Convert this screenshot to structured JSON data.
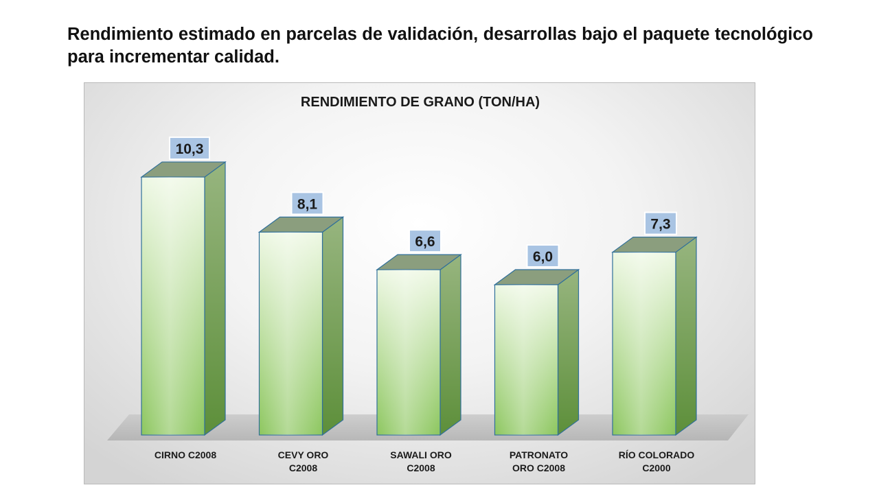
{
  "slide": {
    "title": "Rendimiento estimado en parcelas de validación, desarrollas bajo el paquete tecnológico para incrementar calidad."
  },
  "chart_data": {
    "type": "bar",
    "title": "RENDIMIENTO DE GRANO (TON/HA)",
    "categories": [
      [
        "CIRNO C2008"
      ],
      [
        "CEVY ORO",
        "C2008"
      ],
      [
        "SAWALI ORO",
        "C2008"
      ],
      [
        "PATRONATO",
        "ORO C2008"
      ],
      [
        "RÍO COLORADO",
        "C2000"
      ]
    ],
    "values": [
      10.3,
      8.1,
      6.6,
      6.0,
      7.3
    ],
    "value_labels": [
      "10,3",
      "8,1",
      "6,6",
      "6,0",
      "7,3"
    ],
    "grid": false,
    "legend": "none",
    "colors": {
      "bar_front_light": "#eef8e4",
      "bar_front_dark": "#8cc65e",
      "bar_side": "#6f9e4c",
      "bar_top": "#8b9e7e",
      "bar_edge": "#2f6f9a",
      "label_box": "#a9c4e3",
      "floor": "#b9b9b9"
    }
  }
}
